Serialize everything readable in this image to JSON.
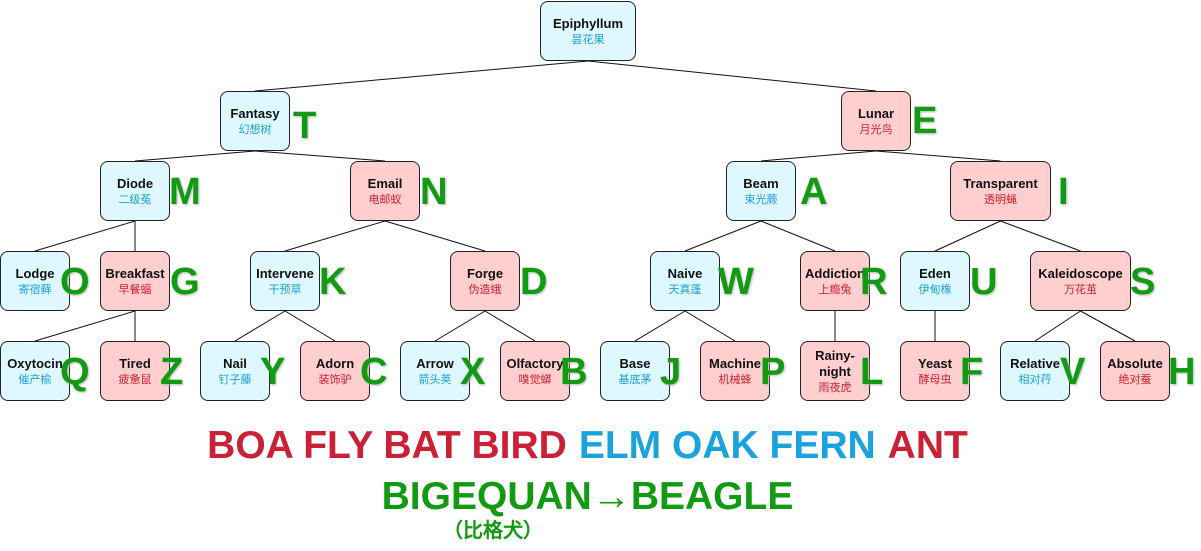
{
  "tree": {
    "nodes": [
      {
        "id": "epiphyllum",
        "en": "Epiphyllum",
        "zh": "昙花果",
        "color": "blue",
        "letter": ""
      },
      {
        "id": "fantasy",
        "en": "Fantasy",
        "zh": "幻想树",
        "color": "blue",
        "letter": "T"
      },
      {
        "id": "lunar",
        "en": "Lunar",
        "zh": "月光鸟",
        "color": "pink",
        "letter": "E"
      },
      {
        "id": "diode",
        "en": "Diode",
        "zh": "二级菟",
        "color": "blue",
        "letter": "M"
      },
      {
        "id": "email",
        "en": "Email",
        "zh": "电邮蚁",
        "color": "pink",
        "letter": "N"
      },
      {
        "id": "beam",
        "en": "Beam",
        "zh": "束光蕨",
        "color": "blue",
        "letter": "A"
      },
      {
        "id": "transparent",
        "en": "Transparent",
        "zh": "透明蝇",
        "color": "pink",
        "letter": "I"
      },
      {
        "id": "lodge",
        "en": "Lodge",
        "zh": "寄宿藓",
        "color": "blue",
        "letter": "O"
      },
      {
        "id": "breakfast",
        "en": "Breakfast",
        "zh": "早餐蝠",
        "color": "pink",
        "letter": "G"
      },
      {
        "id": "intervene",
        "en": "Intervene",
        "zh": "干预草",
        "color": "blue",
        "letter": "K"
      },
      {
        "id": "forge",
        "en": "Forge",
        "zh": "伪造蛾",
        "color": "pink",
        "letter": "D"
      },
      {
        "id": "naive",
        "en": "Naive",
        "zh": "天真蓬",
        "color": "blue",
        "letter": "W"
      },
      {
        "id": "addiction",
        "en": "Addiction",
        "zh": "上瘾兔",
        "color": "pink",
        "letter": "R"
      },
      {
        "id": "eden",
        "en": "Eden",
        "zh": "伊甸橡",
        "color": "blue",
        "letter": "U"
      },
      {
        "id": "kaleidoscope",
        "en": "Kaleidoscope",
        "zh": "万花茧",
        "color": "pink",
        "letter": "S"
      },
      {
        "id": "oxytocin",
        "en": "Oxytocin",
        "zh": "催产榆",
        "color": "blue",
        "letter": "Q"
      },
      {
        "id": "tired",
        "en": "Tired",
        "zh": "疲惫鼠",
        "color": "pink",
        "letter": "Z"
      },
      {
        "id": "nail",
        "en": "Nail",
        "zh": "钉子藤",
        "color": "blue",
        "letter": "Y"
      },
      {
        "id": "adorn",
        "en": "Adorn",
        "zh": "装饰驴",
        "color": "pink",
        "letter": "C"
      },
      {
        "id": "arrow",
        "en": "Arrow",
        "zh": "箭头荚",
        "color": "blue",
        "letter": "X"
      },
      {
        "id": "olfactory",
        "en": "Olfactory",
        "zh": "嗅觉蟒",
        "color": "pink",
        "letter": "B"
      },
      {
        "id": "base",
        "en": "Base",
        "zh": "基底茅",
        "color": "blue",
        "letter": "J"
      },
      {
        "id": "machine",
        "en": "Machine",
        "zh": "机械蜂",
        "color": "pink",
        "letter": "P"
      },
      {
        "id": "rainy-night",
        "en": "Rainy-\nnight",
        "zh": "雨夜虎",
        "color": "pink",
        "letter": "L"
      },
      {
        "id": "yeast",
        "en": "Yeast",
        "zh": "酵母虫",
        "color": "pink",
        "letter": "F"
      },
      {
        "id": "relative",
        "en": "Relative",
        "zh": "相对荇",
        "color": "blue",
        "letter": "V"
      },
      {
        "id": "absolute",
        "en": "Absolute",
        "zh": "绝对蚕",
        "color": "pink",
        "letter": "H"
      }
    ],
    "edges": [
      [
        "epiphyllum",
        "fantasy"
      ],
      [
        "epiphyllum",
        "lunar"
      ],
      [
        "fantasy",
        "diode"
      ],
      [
        "fantasy",
        "email"
      ],
      [
        "lunar",
        "beam"
      ],
      [
        "lunar",
        "transparent"
      ],
      [
        "diode",
        "lodge"
      ],
      [
        "diode",
        "breakfast"
      ],
      [
        "email",
        "intervene"
      ],
      [
        "email",
        "forge"
      ],
      [
        "beam",
        "naive"
      ],
      [
        "beam",
        "addiction"
      ],
      [
        "transparent",
        "eden"
      ],
      [
        "transparent",
        "kaleidoscope"
      ],
      [
        "breakfast",
        "oxytocin"
      ],
      [
        "breakfast",
        "tired"
      ],
      [
        "intervene",
        "nail"
      ],
      [
        "intervene",
        "adorn"
      ],
      [
        "forge",
        "arrow"
      ],
      [
        "forge",
        "olfactory"
      ],
      [
        "naive",
        "base"
      ],
      [
        "naive",
        "machine"
      ],
      [
        "addiction",
        "rainy-night"
      ],
      [
        "eden",
        "yeast"
      ],
      [
        "kaleidoscope",
        "relative"
      ],
      [
        "kaleidoscope",
        "absolute"
      ]
    ]
  },
  "caption": {
    "line1": [
      {
        "text": "BOA FLY BAT BIRD",
        "color": "red"
      },
      {
        "text": "ELM OAK FERN",
        "color": "cyan"
      },
      {
        "text": "ANT",
        "color": "red"
      }
    ],
    "line2": "BIGEQUAN→BEAGLE",
    "line3": "（比格犬）"
  },
  "colors": {
    "blue_fill": "#dff8ff",
    "pink_fill": "#ffcfcf",
    "letter_green": "#139a13",
    "red_text": "#cc2036",
    "cyan_text": "#1aa3df"
  }
}
